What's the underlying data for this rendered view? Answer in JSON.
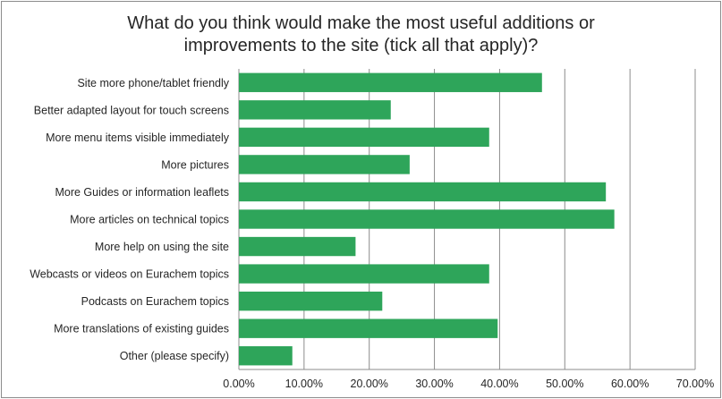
{
  "chart_data": {
    "type": "bar",
    "orientation": "horizontal",
    "title_lines": [
      "What do you think would make the most useful additions or",
      "improvements to the site (tick all that apply)?"
    ],
    "categories": [
      "Site more phone/tablet friendly",
      "Better adapted layout for touch screens",
      "More menu items visible immediately",
      "More pictures",
      "More Guides or information leaflets",
      "More articles on technical topics",
      "More help on using the site",
      "Webcasts or videos on Eurachem topics",
      "Podcasts on Eurachem topics",
      "More translations of existing guides",
      "Other (please specify)"
    ],
    "values": [
      46.5,
      23.3,
      38.4,
      26.2,
      56.3,
      57.6,
      17.9,
      38.4,
      22.0,
      39.7,
      8.2
    ],
    "xlim": [
      0,
      70
    ],
    "x_ticks": [
      "0.00%",
      "10.00%",
      "20.00%",
      "30.00%",
      "40.00%",
      "50.00%",
      "60.00%",
      "70.00%"
    ],
    "grid": "vertical",
    "bar_color": "#2ea55a"
  }
}
